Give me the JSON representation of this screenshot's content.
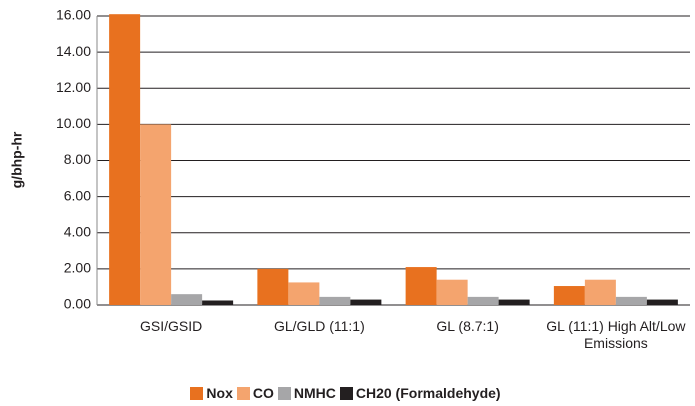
{
  "chart_data": {
    "type": "bar",
    "y_label": "g/bhp-hr",
    "categories": [
      "GSI/GSID",
      "GL/GLD (11:1)",
      "GL (8.7:1)",
      "GL (11:1) High Alt/Low Emissions"
    ],
    "series": [
      {
        "name": "Nox",
        "color": "#e8711f",
        "values": [
          16.1,
          2.0,
          2.1,
          1.05
        ]
      },
      {
        "name": "CO",
        "color": "#f4a46e",
        "values": [
          10.0,
          1.25,
          1.4,
          1.4
        ]
      },
      {
        "name": "NMHC",
        "color": "#a6a6a8",
        "values": [
          0.6,
          0.45,
          0.45,
          0.45
        ]
      },
      {
        "name": "CH20 (Formaldehyde)",
        "color": "#231f20",
        "values": [
          0.25,
          0.3,
          0.3,
          0.3
        ]
      }
    ],
    "ylim": [
      0,
      16
    ],
    "yticks": [
      {
        "value": 0,
        "label": "0.00"
      },
      {
        "value": 2,
        "label": "2.00"
      },
      {
        "value": 4,
        "label": "4.00"
      },
      {
        "value": 6,
        "label": "6.00"
      },
      {
        "value": 8,
        "label": "8.00"
      },
      {
        "value": 10,
        "label": "10.00"
      },
      {
        "value": 12,
        "label": "12.00"
      },
      {
        "value": 14,
        "label": "14.00"
      },
      {
        "value": 16,
        "label": "16.00"
      }
    ],
    "grid": true
  }
}
